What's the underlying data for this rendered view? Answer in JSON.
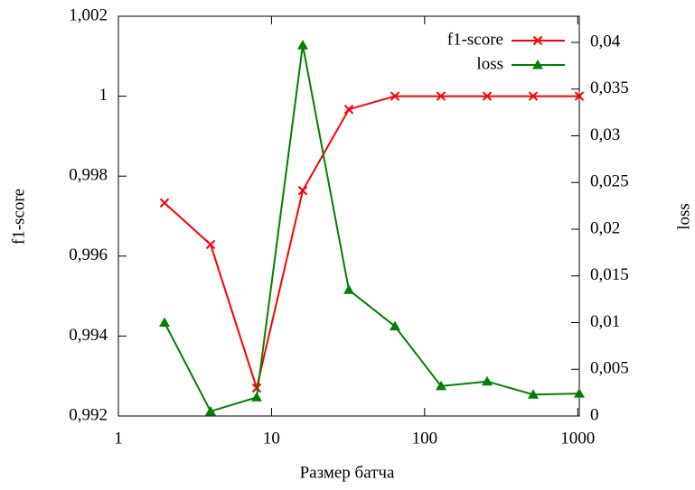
{
  "chart_data": {
    "type": "line",
    "x_label": "Размер батча",
    "y_label": "f1-score",
    "y2_label": "loss",
    "x": [
      2,
      4,
      8,
      16,
      32,
      64,
      128,
      256,
      512,
      1024
    ],
    "x_scale": "log",
    "xlim": [
      1,
      1024
    ],
    "xticks": [
      1,
      10,
      100,
      1000
    ],
    "ylim": [
      0.992,
      1.002
    ],
    "yticks": [
      {
        "value": 0.992,
        "label": "0,992"
      },
      {
        "value": 0.994,
        "label": "0,994"
      },
      {
        "value": 0.996,
        "label": "0,996"
      },
      {
        "value": 0.998,
        "label": "0,998"
      },
      1,
      {
        "value": 1.002,
        "label": "1,002"
      }
    ],
    "y2lim": [
      0,
      0.0428
    ],
    "y2ticks": [
      0,
      {
        "value": 0.005,
        "label": "0,005"
      },
      {
        "value": 0.01,
        "label": "0,01"
      },
      {
        "value": 0.015,
        "label": "0,015"
      },
      {
        "value": 0.02,
        "label": "0,02"
      },
      {
        "value": 0.025,
        "label": "0,025"
      },
      {
        "value": 0.03,
        "label": "0,03"
      },
      {
        "value": 0.035,
        "label": "0,035"
      },
      {
        "value": 0.04,
        "label": "0,04"
      }
    ],
    "legend": "upper right",
    "series": [
      {
        "name": "f1-score",
        "color": "#ff0000",
        "marker": "x",
        "values": [
          0.99733,
          0.99629,
          0.9927,
          0.99764,
          0.99967,
          1,
          1,
          1,
          1,
          1
        ]
      },
      {
        "name": "loss",
        "color": "#008000",
        "marker": "triangle",
        "axis": "y2",
        "values": [
          0.01,
          0.0005,
          0.002,
          0.0397,
          0.0135,
          0.0096,
          0.0032,
          0.0037,
          0.0023,
          0.0024
        ]
      }
    ]
  }
}
